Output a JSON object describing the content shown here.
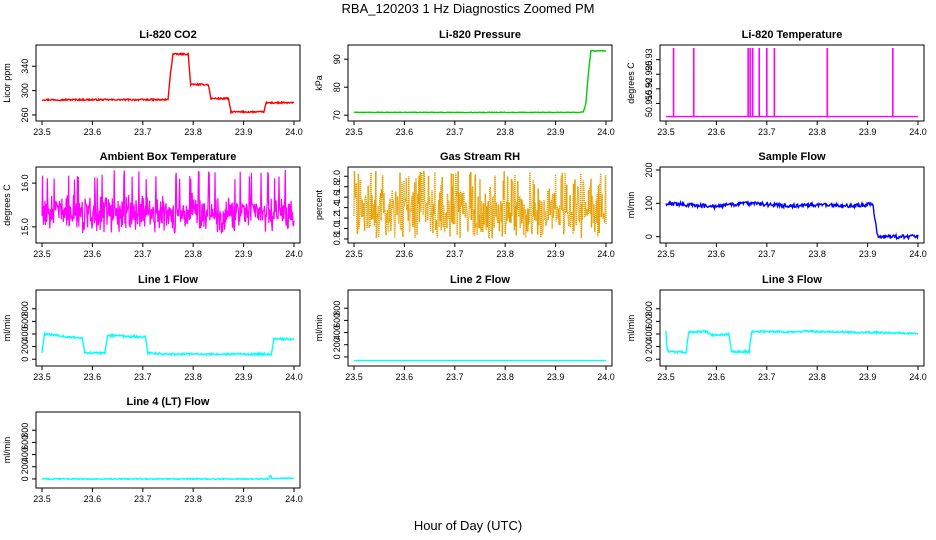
{
  "figure": {
    "title": "RBA_120203  1 Hz Diagnostics Zoomed PM",
    "xlabel": "Hour of Day (UTC)"
  },
  "chart_data": [
    {
      "type": "line",
      "title": "Li-820 CO2",
      "ylabel": "Licor ppm",
      "color": "#ff0000",
      "xlim": [
        23.5,
        24.0
      ],
      "ylim": [
        255,
        370
      ],
      "xticks": [
        "23.5",
        "23.6",
        "23.7",
        "23.8",
        "23.9",
        "24.0"
      ],
      "yticks": [
        260,
        300,
        340
      ],
      "noise": 1.2,
      "series": [
        {
          "name": "CO2",
          "x": [
            23.5,
            23.75,
            23.755,
            23.76,
            23.79,
            23.795,
            23.83,
            23.835,
            23.87,
            23.875,
            23.94,
            23.945,
            24.0
          ],
          "y": [
            285,
            285,
            330,
            360,
            360,
            310,
            310,
            287,
            287,
            265,
            265,
            280,
            280
          ]
        }
      ]
    },
    {
      "type": "line",
      "title": "Li-820 Pressure",
      "ylabel": "kPa",
      "color": "#00cc00",
      "xlim": [
        23.5,
        24.0
      ],
      "ylim": [
        69,
        94
      ],
      "xticks": [
        "23.5",
        "23.6",
        "23.7",
        "23.8",
        "23.9",
        "24.0"
      ],
      "yticks": [
        70,
        80,
        90
      ],
      "noise": 0.1,
      "series": [
        {
          "name": "Pressure",
          "x": [
            23.5,
            23.95,
            23.955,
            23.96,
            23.965,
            23.97,
            24.0
          ],
          "y": [
            71,
            71,
            71.2,
            74,
            85,
            93,
            93
          ]
        }
      ]
    },
    {
      "type": "spikes",
      "title": "Li-820 Temperature",
      "ylabel": "degrees C",
      "color": "#ff00ff",
      "xlim": [
        23.5,
        24.0
      ],
      "ylim": [
        50.91,
        50.934
      ],
      "xticks": [
        "23.5",
        "23.6",
        "23.7",
        "23.8",
        "23.9",
        "24.0"
      ],
      "yticks": [
        50.915,
        50.92,
        50.925,
        50.93
      ],
      "baseline": 50.9105,
      "top": 50.934,
      "spikes_x": [
        23.515,
        23.555,
        23.663,
        23.667,
        23.672,
        23.685,
        23.7,
        23.715,
        23.82,
        23.95
      ]
    },
    {
      "type": "noise",
      "title": "Ambient Box Temperature",
      "ylabel": "degrees C",
      "color": "#ff00ff",
      "xlim": [
        23.5,
        24.0
      ],
      "ylim": [
        14.7,
        16.3
      ],
      "xticks": [
        "23.5",
        "23.6",
        "23.7",
        "23.8",
        "23.9",
        "24.0"
      ],
      "yticks": [
        15.0,
        16.0
      ],
      "yticklabels": [
        "15.0",
        "16.0"
      ],
      "center": 15.3,
      "spread": 0.65,
      "min": 14.85,
      "max": 16.3,
      "seed": 7
    },
    {
      "type": "noise",
      "title": "Gas Stream RH",
      "ylabel": "percent",
      "color": "#e69f00",
      "xlim": [
        23.5,
        24.0
      ],
      "ylim": [
        0.78,
        2.12
      ],
      "xticks": [
        "23.5",
        "23.6",
        "23.7",
        "23.8",
        "23.9",
        "24.0"
      ],
      "yticks": [
        0.8,
        1.0,
        1.2,
        1.4,
        1.6,
        1.8,
        2.0
      ],
      "yticklabels": [
        "0.8",
        "1.0",
        "1.2",
        "1.4",
        "1.6",
        "1.8",
        "2.0"
      ],
      "center": 1.3,
      "spread": 0.85,
      "min": 0.82,
      "max": 2.1,
      "seed": 13,
      "dotted": true
    },
    {
      "type": "line",
      "title": "Sample Flow",
      "ylabel": "ml/min",
      "color": "#0000ff",
      "xlim": [
        23.5,
        24.0
      ],
      "ylim": [
        -10,
        200
      ],
      "xticks": [
        "23.5",
        "23.6",
        "23.7",
        "23.8",
        "23.9",
        "24.0"
      ],
      "yticks": [
        0,
        100,
        200
      ],
      "noise": 6,
      "series": [
        {
          "name": "Sample Flow",
          "x": [
            23.5,
            23.6,
            23.65,
            23.7,
            23.75,
            23.8,
            23.85,
            23.9,
            23.91,
            23.92,
            24.0
          ],
          "y": [
            100,
            90,
            100,
            97,
            92,
            95,
            92,
            95,
            100,
            0,
            0
          ]
        }
      ]
    },
    {
      "type": "line",
      "title": "Line 1 Flow",
      "ylabel": "ml/min",
      "color": "#00ffff",
      "xlim": [
        23.5,
        24.0
      ],
      "ylim": [
        -60,
        1050
      ],
      "xticks": [
        "23.5",
        "23.6",
        "23.7",
        "23.8",
        "23.9",
        "24.0"
      ],
      "yticks": [
        0,
        200,
        400,
        600,
        800
      ],
      "noise": 15,
      "series": [
        {
          "name": "Line 1 Flow",
          "x": [
            23.5,
            23.505,
            23.58,
            23.585,
            23.625,
            23.63,
            23.705,
            23.71,
            23.75,
            23.955,
            23.96,
            24.0
          ],
          "y": [
            100,
            400,
            330,
            100,
            100,
            380,
            350,
            100,
            80,
            80,
            320,
            320
          ]
        }
      ]
    },
    {
      "type": "line",
      "title": "Line 2 Flow",
      "ylabel": "ml/min",
      "color": "#00ffff",
      "xlim": [
        23.5,
        24.0
      ],
      "ylim": [
        -100,
        1050
      ],
      "xticks": [
        "23.5",
        "23.6",
        "23.7",
        "23.8",
        "23.9",
        "24.0"
      ],
      "yticks": [
        0,
        200,
        400,
        600,
        800
      ],
      "noise": 0,
      "series": [
        {
          "name": "Line 2 Flow",
          "x": [
            23.5,
            24.0
          ],
          "y": [
            -60,
            -60
          ]
        }
      ]
    },
    {
      "type": "line",
      "title": "Line 3 Flow",
      "ylabel": "ml/min",
      "color": "#00ffff",
      "xlim": [
        23.5,
        24.0
      ],
      "ylim": [
        -60,
        1050
      ],
      "xticks": [
        "23.5",
        "23.6",
        "23.7",
        "23.8",
        "23.9",
        "24.0"
      ],
      "yticks": [
        0,
        200,
        400,
        600,
        800
      ],
      "noise": 15,
      "series": [
        {
          "name": "Line 3 Flow",
          "x": [
            23.5,
            23.502,
            23.505,
            23.54,
            23.545,
            23.58,
            23.59,
            23.625,
            23.63,
            23.665,
            23.67,
            23.77,
            23.775,
            23.78,
            24.0
          ],
          "y": [
            450,
            150,
            120,
            110,
            430,
            440,
            380,
            400,
            120,
            120,
            440,
            430,
            450,
            440,
            410
          ]
        }
      ]
    },
    {
      "type": "line",
      "title": "Line 4 (LT) Flow",
      "ylabel": "ml/min",
      "color": "#00ffff",
      "xlim": [
        23.5,
        24.0
      ],
      "ylim": [
        -100,
        1050
      ],
      "xticks": [
        "23.5",
        "23.6",
        "23.7",
        "23.8",
        "23.9",
        "24.0"
      ],
      "yticks": [
        0,
        200,
        400,
        600,
        800
      ],
      "noise": 8,
      "series": [
        {
          "name": "Line 4 (LT) Flow",
          "x": [
            23.5,
            23.95,
            23.953,
            23.956,
            24.0
          ],
          "y": [
            0,
            0,
            60,
            10,
            10
          ]
        }
      ]
    }
  ]
}
